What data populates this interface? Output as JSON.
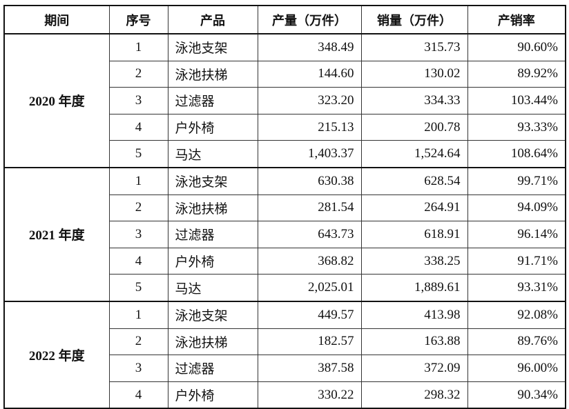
{
  "headers": [
    "期间",
    "序号",
    "产品",
    "产量（万件）",
    "销量（万件）",
    "产销率"
  ],
  "groups": [
    {
      "period": "2020 年度",
      "rows": [
        [
          "1",
          "泳池支架",
          "348.49",
          "315.73",
          "90.60%"
        ],
        [
          "2",
          "泳池扶梯",
          "144.60",
          "130.02",
          "89.92%"
        ],
        [
          "3",
          "过滤器",
          "323.20",
          "334.33",
          "103.44%"
        ],
        [
          "4",
          "户外椅",
          "215.13",
          "200.78",
          "93.33%"
        ],
        [
          "5",
          "马达",
          "1,403.37",
          "1,524.64",
          "108.64%"
        ]
      ]
    },
    {
      "period": "2021 年度",
      "rows": [
        [
          "1",
          "泳池支架",
          "630.38",
          "628.54",
          "99.71%"
        ],
        [
          "2",
          "泳池扶梯",
          "281.54",
          "264.91",
          "94.09%"
        ],
        [
          "3",
          "过滤器",
          "643.73",
          "618.91",
          "96.14%"
        ],
        [
          "4",
          "户外椅",
          "368.82",
          "338.25",
          "91.71%"
        ],
        [
          "5",
          "马达",
          "2,025.01",
          "1,889.61",
          "93.31%"
        ]
      ]
    },
    {
      "period": "2022 年度",
      "rows": [
        [
          "1",
          "泳池支架",
          "449.57",
          "413.98",
          "92.08%"
        ],
        [
          "2",
          "泳池扶梯",
          "182.57",
          "163.88",
          "89.76%"
        ],
        [
          "3",
          "过滤器",
          "387.58",
          "372.09",
          "96.00%"
        ],
        [
          "4",
          "户外椅",
          "330.22",
          "298.32",
          "90.34%"
        ]
      ]
    }
  ]
}
